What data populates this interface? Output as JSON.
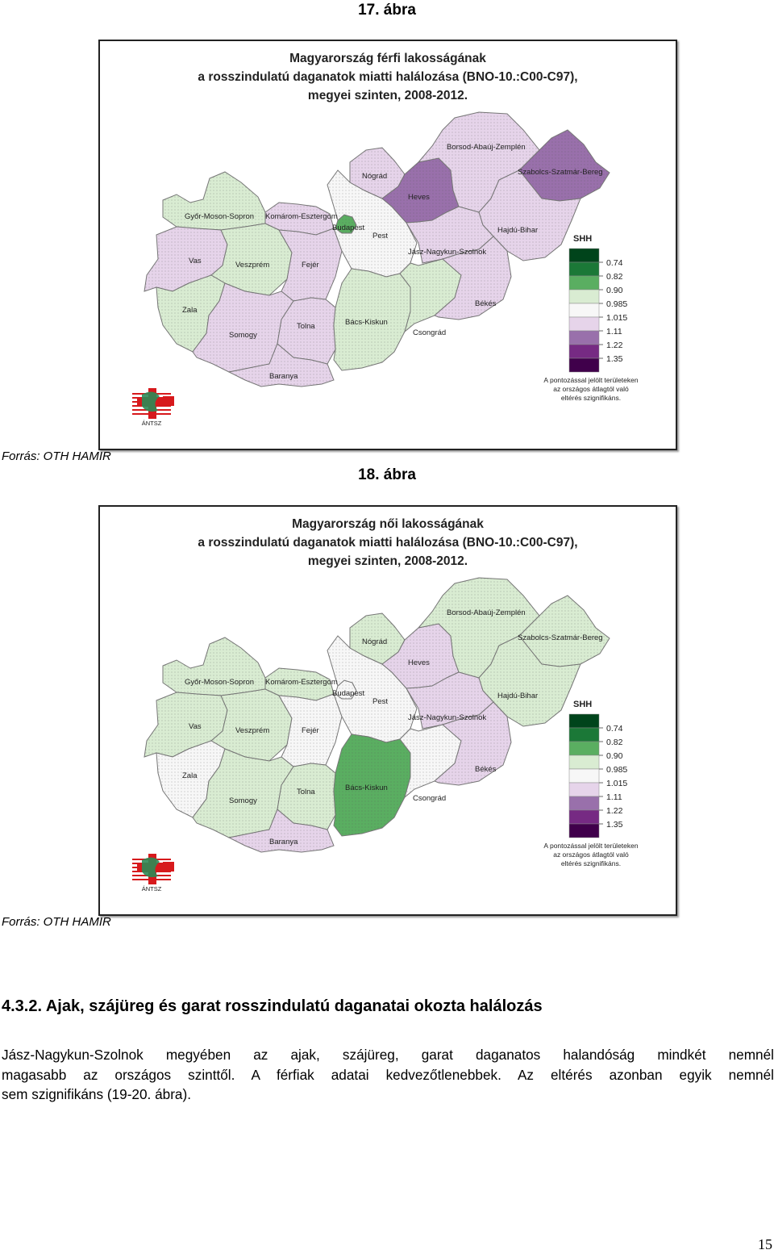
{
  "figures": [
    {
      "label": "17. ábra",
      "title_lines": [
        "Magyarország férfi lakosságának",
        "a rosszindulatú daganatok miatti halálozása (BNO-10.:C00-C97),",
        "megyei szinten, 2008-2012."
      ],
      "source": "Forrás: OTH HAMIR",
      "counties": {
        "gyor": "#d9ecd2",
        "vas": "#e6d4ea",
        "zala": "#d9ecd2",
        "veszprem": "#d9ecd2",
        "komarom": "#e6d4ea",
        "fejer": "#e6d4ea",
        "somogy": "#e6d4ea",
        "tolna": "#e6d4ea",
        "baranya": "#e6d4ea",
        "budapest": "#5aae61",
        "pest": "#f7f7f7",
        "nograd": "#e6d4ea",
        "heves": "#9970ab",
        "borsod": "#e6d4ea",
        "szabolcs": "#9970ab",
        "hajdu": "#e6d4ea",
        "jasz": "#e6d4ea",
        "bacs": "#d9ecd2",
        "csongrad": "#d9ecd2",
        "bekes": "#e6d4ea"
      }
    },
    {
      "label": "18. ábra",
      "title_lines": [
        "Magyarország női lakosságának",
        "a rosszindulatú daganatok miatti halálozása (BNO-10.:C00-C97),",
        "megyei szinten, 2008-2012."
      ],
      "source": "Forrás: OTH HAMIR",
      "counties": {
        "gyor": "#d9ecd2",
        "vas": "#d9ecd2",
        "zala": "#f7f7f7",
        "veszprem": "#d9ecd2",
        "komarom": "#d9ecd2",
        "fejer": "#f7f7f7",
        "somogy": "#d9ecd2",
        "tolna": "#d9ecd2",
        "baranya": "#e6d4ea",
        "budapest": "#f7f7f7",
        "pest": "#f7f7f7",
        "nograd": "#d9ecd2",
        "heves": "#e6d4ea",
        "borsod": "#d9ecd2",
        "szabolcs": "#d9ecd2",
        "hajdu": "#d9ecd2",
        "jasz": "#e6d4ea",
        "bacs": "#5aae61",
        "csongrad": "#f7f7f7",
        "bekes": "#e6d4ea"
      }
    }
  ],
  "county_names": {
    "gyor": "Győr-Moson-Sopron",
    "komarom": "Komárom-Esztergom",
    "vas": "Vas",
    "veszprem": "Veszprém",
    "fejer": "Fejér",
    "zala": "Zala",
    "somogy": "Somogy",
    "tolna": "Tolna",
    "baranya": "Baranya",
    "budapest": "Budapest",
    "pest": "Pest",
    "nograd": "Nógrád",
    "heves": "Heves",
    "borsod": "Borsod-Abaúj-Zemplén",
    "szabolcs": "Szabolcs-Szatmár-Bereg",
    "hajdu": "Hajdú-Bihar",
    "jasz": "Jász-Nagykun-Szolnok",
    "bacs": "Bács-Kiskun",
    "csongrad": "Csongrád",
    "bekes": "Békés"
  },
  "legend": {
    "title": "SHH",
    "ticks": [
      "0.74",
      "0.82",
      "0.90",
      "0.985",
      "1.015",
      "1.11",
      "1.22",
      "1.35"
    ],
    "colors": [
      "#00441b",
      "#1b7837",
      "#5aae61",
      "#d9ecd2",
      "#f7f7f7",
      "#e6d4ea",
      "#9970ab",
      "#762a83",
      "#40004b"
    ],
    "note_lines": [
      "A pontozással jelölt területeken",
      "az országos átlagtól való",
      "eltérés szignifikáns."
    ]
  },
  "logo": {
    "text": "ÁNTSZ",
    "color": "#d7191c"
  },
  "section": {
    "heading": "4.3.2. Ajak, szájüreg és garat rosszindulatú daganatai okozta halálozás",
    "paragraph_lines": [
      "Jász-Nagykun-Szolnok megyében az ajak, szájüreg, garat daganatos halandóság mindkét nemnél",
      "magasabb az országos szinttől. A férfiak adatai kedvezőtlenebbek. Az eltérés azonban egyik nemnél",
      "sem szignifikáns (19-20. ábra)."
    ]
  },
  "page_number": "15"
}
